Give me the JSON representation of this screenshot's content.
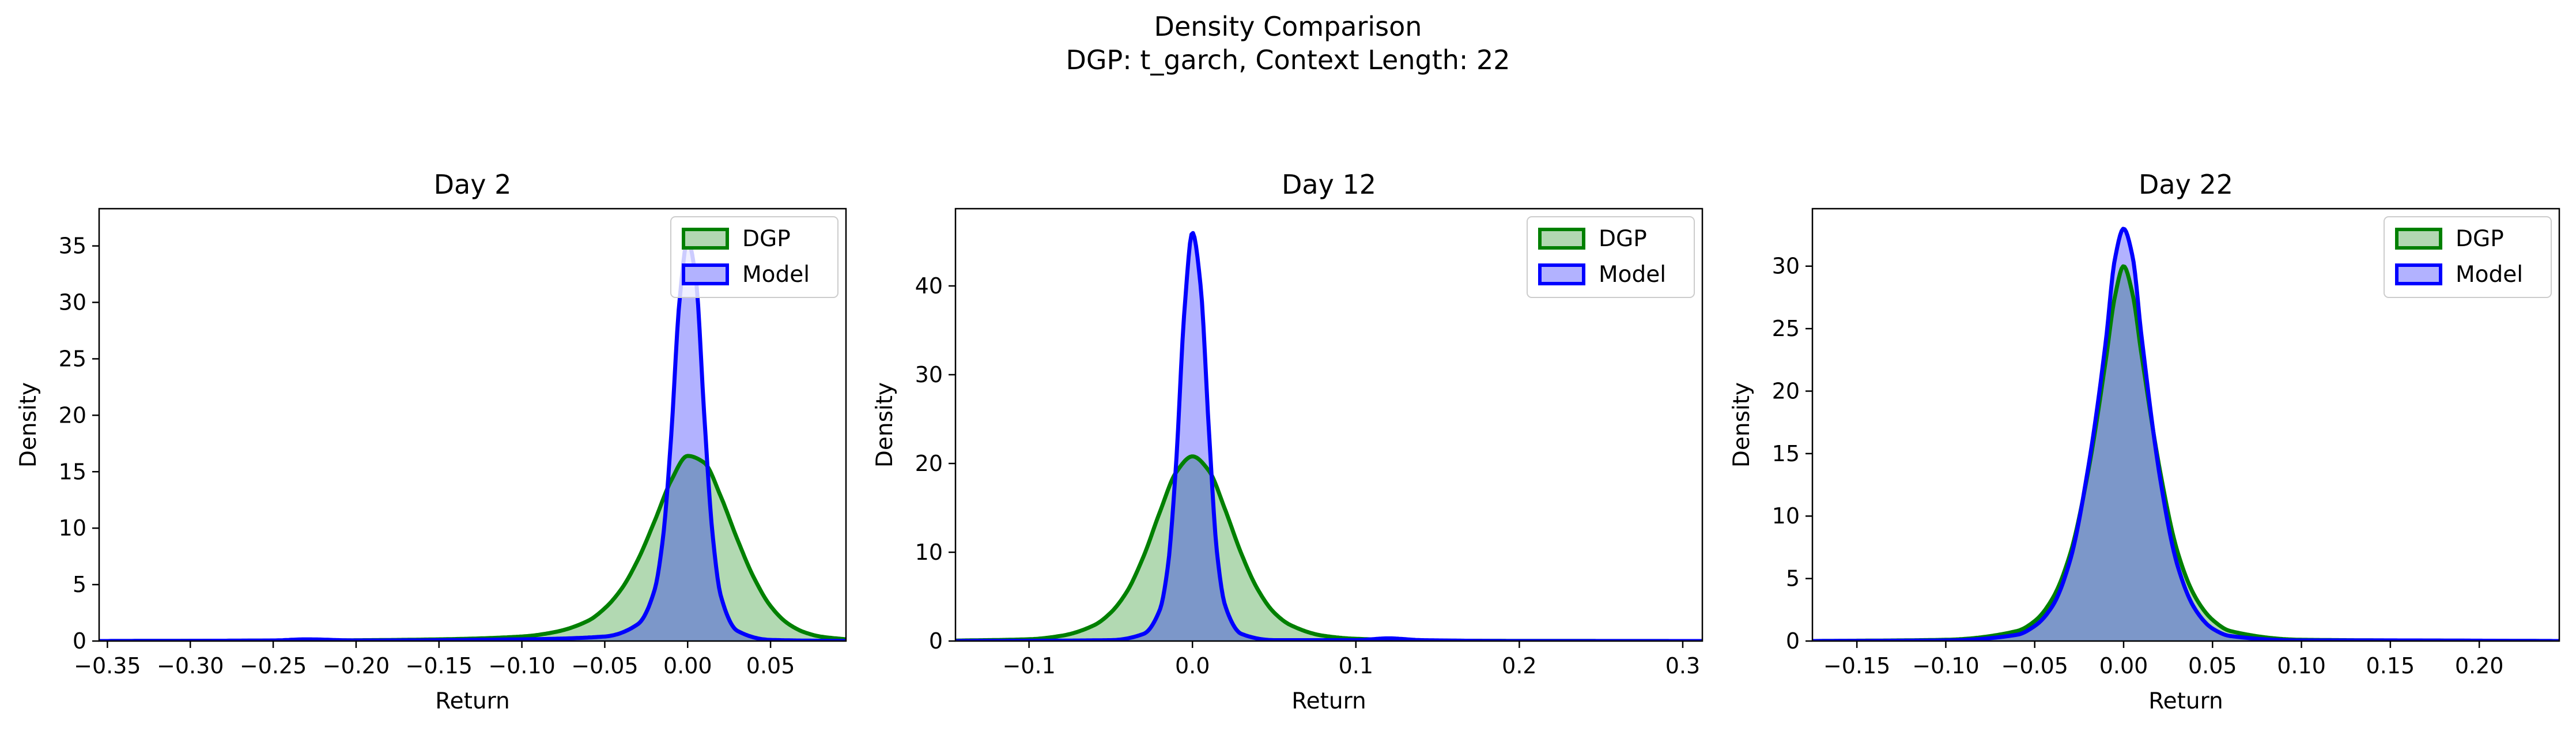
{
  "figure": {
    "title_line1": "Density Comparison",
    "title_line2": "DGP: t_garch, Context Length: 22"
  },
  "chart_data": [
    {
      "type": "area",
      "title": "Day 2",
      "xlabel": "Return",
      "ylabel": "Density",
      "xlim": [
        -0.355,
        0.0955
      ],
      "ylim": [
        0,
        38.3
      ],
      "xticks": [
        -0.35,
        -0.3,
        -0.25,
        -0.2,
        -0.15,
        -0.1,
        -0.05,
        0.0,
        0.05
      ],
      "xtick_labels": [
        "−0.35",
        "−0.30",
        "−0.25",
        "−0.20",
        "−0.15",
        "−0.10",
        "−0.05",
        "0.00",
        "0.05"
      ],
      "yticks": [
        0,
        5,
        10,
        15,
        20,
        25,
        30,
        35
      ],
      "ytick_labels": [
        "0",
        "5",
        "10",
        "15",
        "20",
        "25",
        "30",
        "35"
      ],
      "legend": {
        "loc": "upper right",
        "entries": [
          "DGP",
          "Model"
        ]
      },
      "series": [
        {
          "name": "DGP",
          "color": "#008000",
          "fill": "#b2d8b2",
          "x": [
            -0.355,
            -0.3,
            -0.25,
            -0.2,
            -0.15,
            -0.1,
            -0.08,
            -0.06,
            -0.05,
            -0.04,
            -0.03,
            -0.02,
            -0.01,
            0.0,
            0.01,
            0.02,
            0.03,
            0.04,
            0.05,
            0.06,
            0.07,
            0.08,
            0.0955
          ],
          "y": [
            0.0,
            0.02,
            0.04,
            0.07,
            0.15,
            0.4,
            0.8,
            1.8,
            2.9,
            4.6,
            7.2,
            10.6,
            14.2,
            16.4,
            15.8,
            12.8,
            9.0,
            5.6,
            3.1,
            1.6,
            0.8,
            0.4,
            0.15
          ]
        },
        {
          "name": "Model",
          "color": "#0000ff",
          "fill": "#b2b2ff",
          "x": [
            -0.355,
            -0.25,
            -0.23,
            -0.2,
            -0.1,
            -0.05,
            -0.03,
            -0.02,
            -0.015,
            -0.01,
            -0.005,
            0.0,
            0.005,
            0.01,
            0.015,
            0.02,
            0.03,
            0.05,
            0.0955
          ],
          "y": [
            0.0,
            0.05,
            0.15,
            0.05,
            0.15,
            0.4,
            1.5,
            4.5,
            9.0,
            18.0,
            30.0,
            35.5,
            32.0,
            20.0,
            9.5,
            4.0,
            0.9,
            0.1,
            0.0
          ]
        }
      ]
    },
    {
      "type": "area",
      "title": "Day 12",
      "xlabel": "Return",
      "ylabel": "Density",
      "xlim": [
        -0.145,
        0.312
      ],
      "ylim": [
        0,
        48.7
      ],
      "xticks": [
        -0.1,
        0.0,
        0.1,
        0.2,
        0.3
      ],
      "xtick_labels": [
        "−0.1",
        "0.0",
        "0.1",
        "0.2",
        "0.3"
      ],
      "yticks": [
        0,
        10,
        20,
        30,
        40
      ],
      "ytick_labels": [
        "0",
        "10",
        "20",
        "30",
        "40"
      ],
      "legend": {
        "loc": "upper right",
        "entries": [
          "DGP",
          "Model"
        ]
      },
      "series": [
        {
          "name": "DGP",
          "color": "#008000",
          "fill": "#b2d8b2",
          "x": [
            -0.145,
            -0.1,
            -0.08,
            -0.06,
            -0.05,
            -0.04,
            -0.03,
            -0.02,
            -0.01,
            0.0,
            0.01,
            0.02,
            0.03,
            0.04,
            0.05,
            0.06,
            0.08,
            0.1,
            0.15,
            0.2,
            0.312
          ],
          "y": [
            0.05,
            0.2,
            0.6,
            1.8,
            3.2,
            5.6,
            9.5,
            14.5,
            19.0,
            20.8,
            19.2,
            14.8,
            9.8,
            5.8,
            3.2,
            1.8,
            0.6,
            0.25,
            0.05,
            0.02,
            0.0
          ]
        },
        {
          "name": "Model",
          "color": "#0000ff",
          "fill": "#b2b2ff",
          "x": [
            -0.145,
            -0.05,
            -0.03,
            -0.02,
            -0.015,
            -0.01,
            -0.005,
            0.0,
            0.005,
            0.01,
            0.015,
            0.02,
            0.03,
            0.05,
            0.1,
            0.12,
            0.14,
            0.2,
            0.312
          ],
          "y": [
            0.0,
            0.1,
            0.8,
            3.5,
            8.5,
            20.0,
            37.0,
            46.0,
            40.0,
            24.0,
            10.0,
            4.0,
            0.8,
            0.1,
            0.1,
            0.3,
            0.1,
            0.0,
            0.0
          ]
        }
      ]
    },
    {
      "type": "area",
      "title": "Day 22",
      "xlabel": "Return",
      "ylabel": "Density",
      "xlim": [
        -0.175,
        0.245
      ],
      "ylim": [
        0,
        34.6
      ],
      "xticks": [
        -0.15,
        -0.1,
        -0.05,
        0.0,
        0.05,
        0.1,
        0.15,
        0.2
      ],
      "xtick_labels": [
        "−0.15",
        "−0.10",
        "−0.05",
        "0.00",
        "0.05",
        "0.10",
        "0.15",
        "0.20"
      ],
      "yticks": [
        0,
        5,
        10,
        15,
        20,
        25,
        30
      ],
      "ytick_labels": [
        "0",
        "5",
        "10",
        "15",
        "20",
        "25",
        "30"
      ],
      "legend": {
        "loc": "upper right",
        "entries": [
          "DGP",
          "Model"
        ]
      },
      "series": [
        {
          "name": "DGP",
          "color": "#008000",
          "fill": "#b2d8b2",
          "x": [
            -0.175,
            -0.1,
            -0.06,
            -0.05,
            -0.04,
            -0.03,
            -0.02,
            -0.01,
            -0.005,
            0.0,
            0.005,
            0.01,
            0.02,
            0.03,
            0.04,
            0.05,
            0.06,
            0.1,
            0.245
          ],
          "y": [
            0.0,
            0.1,
            0.8,
            1.6,
            3.4,
            7.0,
            13.5,
            22.5,
            27.5,
            30.0,
            27.8,
            23.0,
            14.0,
            7.3,
            3.6,
            1.7,
            0.8,
            0.1,
            0.0
          ]
        },
        {
          "name": "Model",
          "color": "#0000ff",
          "fill": "#b2b2ff",
          "x": [
            -0.175,
            -0.1,
            -0.06,
            -0.05,
            -0.04,
            -0.03,
            -0.02,
            -0.01,
            -0.005,
            0.0,
            0.005,
            0.01,
            0.02,
            0.03,
            0.04,
            0.05,
            0.06,
            0.1,
            0.14,
            0.245
          ],
          "y": [
            0.0,
            0.05,
            0.5,
            1.2,
            2.8,
            6.5,
            13.8,
            24.0,
            30.5,
            33.0,
            30.8,
            24.5,
            13.5,
            6.2,
            2.6,
            1.0,
            0.4,
            0.05,
            0.05,
            0.0
          ]
        }
      ]
    }
  ]
}
